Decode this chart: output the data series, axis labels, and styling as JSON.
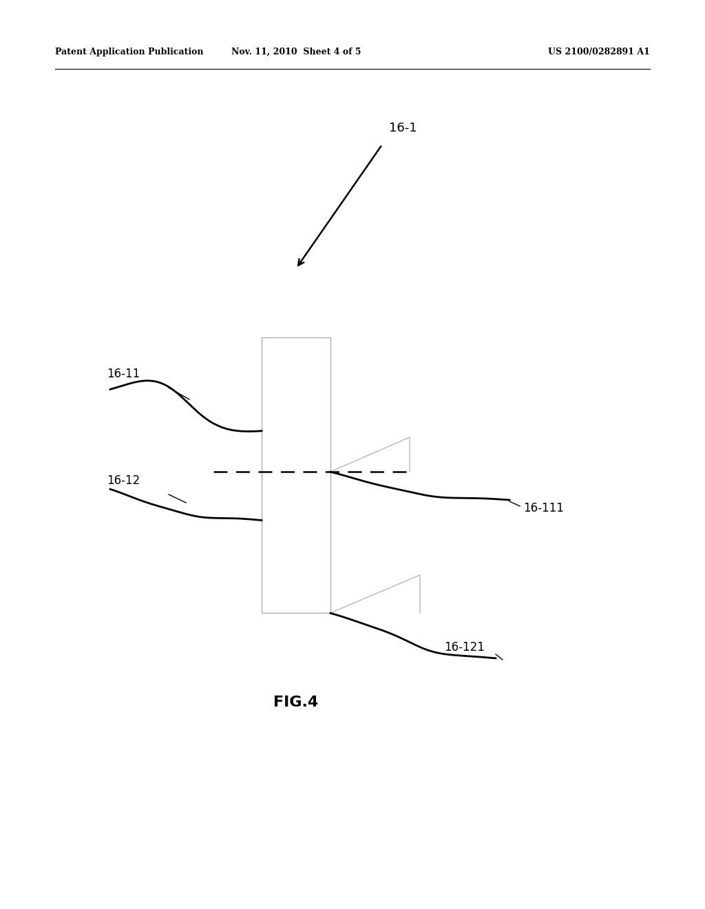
{
  "bg_color": "#ffffff",
  "header_left": "Patent Application Publication",
  "header_mid": "Nov. 11, 2010  Sheet 4 of 5",
  "header_right": "US 2100/0282891 A1",
  "fig_label": "FIG.4",
  "label_16_1": "16-1",
  "label_16_11": "16-11",
  "label_16_12": "16-12",
  "label_16_111": "16-111",
  "label_16_121": "16-121",
  "line_color": "#000000",
  "light_gray": "#b0b0b0",
  "rect_color": "#c8c8c8"
}
